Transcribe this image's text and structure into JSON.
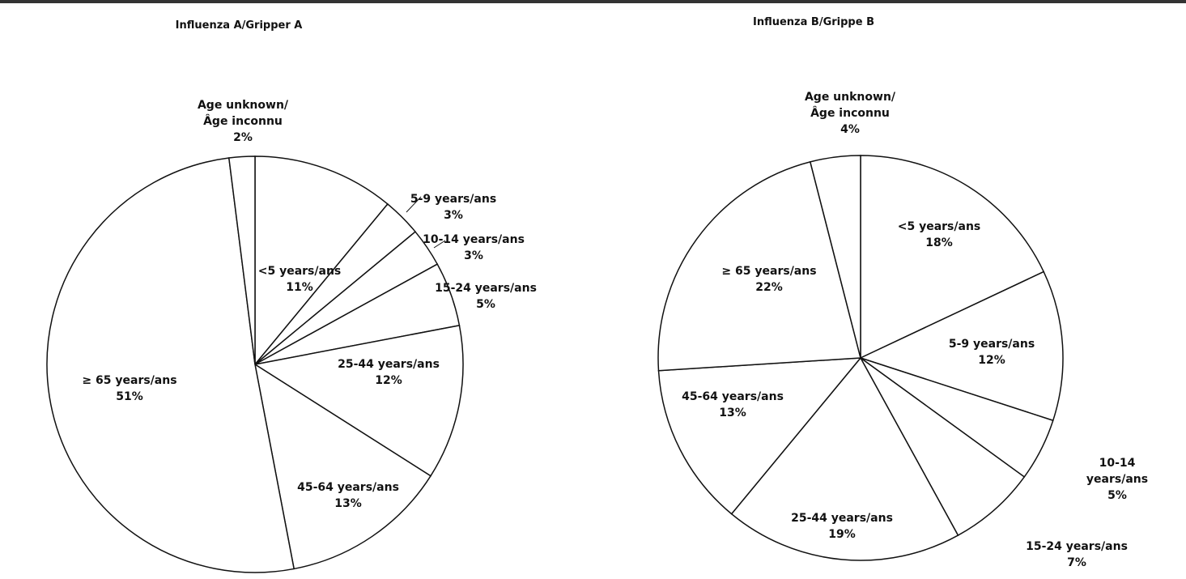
{
  "chart_data": [
    {
      "type": "pie",
      "title": "Influenza A/Gripper A",
      "categories": [
        "<5 years/ans",
        "5-9 years/ans",
        "10-14 years/ans",
        "15-24 years/ans",
        "25-44 years/ans",
        "45-64 years/ans",
        "≥ 65 years/ans",
        "Age unknown/\nÂge inconnu"
      ],
      "values": [
        11,
        3,
        3,
        5,
        12,
        13,
        51,
        2
      ],
      "value_labels": [
        "11%",
        "3%",
        "3%",
        "5%",
        "12%",
        "13%",
        "51%",
        "2%"
      ],
      "color": "#ffffff"
    },
    {
      "type": "pie",
      "title": "Influenza B/Grippe B",
      "categories": [
        "<5 years/ans",
        "5-9 years/ans",
        "10-14 years/ans",
        "15-24 years/ans",
        "25-44 years/ans",
        "45-64 years/ans",
        "≥ 65 years/ans",
        "Age unknown/\nÂge inconnu"
      ],
      "values": [
        18,
        12,
        5,
        7,
        19,
        13,
        22,
        4
      ],
      "value_labels": [
        "18%",
        "12%",
        "5%",
        "7%",
        "19%",
        "13%",
        "22%",
        "4%"
      ],
      "color": "#ffffff"
    }
  ]
}
